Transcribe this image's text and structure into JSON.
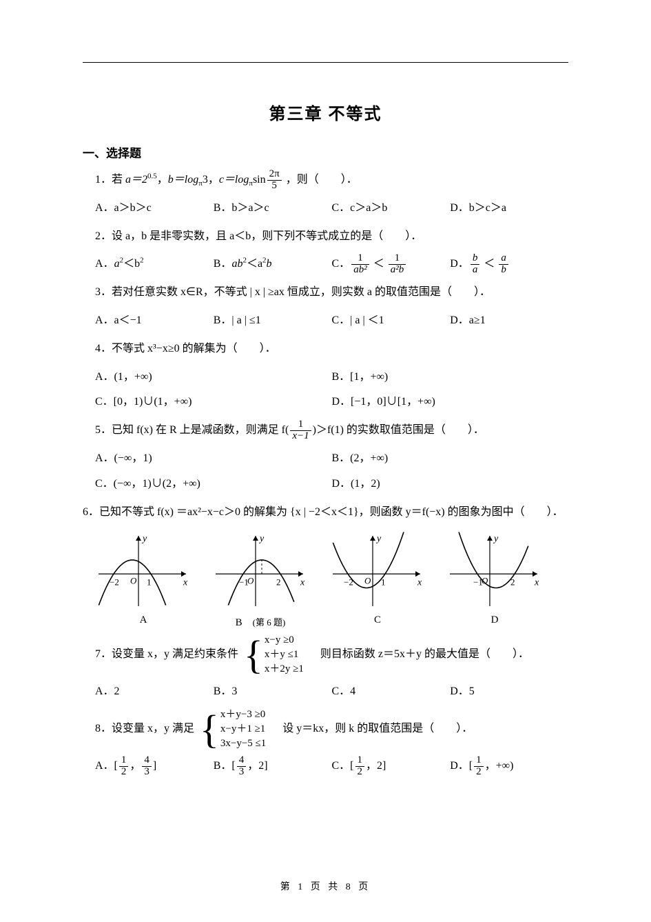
{
  "title": "第三章 不等式",
  "section1": "一、选择题",
  "q1": {
    "stem_pre": "1．若 ",
    "a_eq": "a＝2",
    "a_exp": "0.5",
    "sep1": "，",
    "b_eq": "b＝log",
    "b_sub": "π",
    "b_val": "3",
    "sep2": "，",
    "c_eq": "c＝log",
    "c_sub": "π",
    "c_val_pre": "sin",
    "frac_num": "2π",
    "frac_den": "5",
    "tail": " ，则（　　）．",
    "A": "A．a＞b＞c",
    "B": "B．b＞a＞c",
    "C": "C．c＞a＞b",
    "D": "D．b＞c＞a"
  },
  "q2": {
    "stem": "2．设 a，b 是非零实数，且 a＜b，则下列不等式成立的是（　　）．",
    "A_pre": "A．",
    "A_body": "a",
    "A_exp": "2",
    "A_mid": "＜b",
    "A_exp2": "2",
    "B_pre": "B．",
    "B_body": "ab",
    "B_exp": "2",
    "B_mid": "＜a",
    "B_exp2": "2",
    "B_tail": "b",
    "C_pre": "C．",
    "C_f1n": "1",
    "C_f1d": "ab²",
    "C_mid": " ＜ ",
    "C_f2n": "1",
    "C_f2d": "a²b",
    "D_pre": "D．",
    "D_f1n": "b",
    "D_f1d": "a",
    "D_mid": " ＜ ",
    "D_f2n": "a",
    "D_f2d": "b"
  },
  "q3": {
    "stem": "3．若对任意实数 x∈R，不等式 | x | ≥ax 恒成立，则实数 a 的取值范围是（　　）．",
    "A": "A．a＜−1",
    "B": "B．| a | ≤1",
    "C": "C．| a | ＜1",
    "D": "D．a≥1"
  },
  "q4": {
    "stem": "4．不等式 x³−x≥0 的解集为（　　）．",
    "A": "A．(1，+∞)",
    "B": "B．[1，+∞)",
    "C": "C．[0，1)∪(1，+∞)",
    "D": "D．[−1，0]∪[1，+∞)"
  },
  "q5": {
    "stem_pre": "5．已知 f(x) 在 R 上是减函数，则满足 f(",
    "frac_num": "1",
    "frac_den": "x−1",
    "stem_post": ")＞f(1) 的实数取值范围是（　　）．",
    "A": "A．(−∞，1)",
    "B": "B．(2，+∞)",
    "C": "C．(−∞，1)∪(2，+∞)",
    "D": "D．(1，2)"
  },
  "q6": {
    "stem": "6．已知不等式 f(x) ＝ax²−x−c＞0 的解集为 {x | −2＜x＜1}，则函数 y＝f(−x) 的图象为图中（　　）．",
    "labels": {
      "A": "A",
      "B": "B",
      "C": "C",
      "D": "D"
    },
    "caption": "(第 6 题)",
    "graphs": {
      "axis_color": "#000000",
      "curve_color": "#000000",
      "width": 140,
      "height": 115,
      "A": {
        "open": "down",
        "roots": [
          -2,
          1
        ],
        "xticks": {
          "-2": "−2",
          "1": "1"
        },
        "ylabel": "y",
        "xlabel": "x"
      },
      "B": {
        "open": "down",
        "roots": [
          -1,
          2
        ],
        "xticks": {
          "-1": "−1",
          "2": "2"
        },
        "ylabel": "y",
        "xlabel": "x"
      },
      "C": {
        "open": "up",
        "roots": [
          -2,
          1
        ],
        "xticks": {
          "-2": "−2",
          "1": "1"
        },
        "ylabel": "y",
        "xlabel": "x"
      },
      "D": {
        "open": "up",
        "roots": [
          -1,
          2
        ],
        "xticks": {
          "-1": "−1",
          "2": "2"
        },
        "ylabel": "y",
        "xlabel": "x"
      }
    }
  },
  "q7": {
    "stem_pre": "7．设变量 x，y 满足约束条件",
    "c1": "x−y ≥0",
    "c2": "x＋y ≤1",
    "c3": "x＋2y ≥1",
    "stem_post": "　则目标函数 z＝5x＋y 的最大值是（　　）．",
    "A": "A．2",
    "B": "B．3",
    "C": "C．4",
    "D": "D．5"
  },
  "q8": {
    "stem_pre": "8．设变量 x，y 满足",
    "c1": "x＋y−3 ≥0",
    "c2": "x−y＋1 ≥1",
    "c3": "3x−y−5 ≤1",
    "stem_post": "　设 y＝kx，则 k 的取值范围是（　　）．",
    "A_pre": "A．[",
    "A_f1n": "1",
    "A_f1d": "2",
    "A_mid": "，",
    "A_f2n": "4",
    "A_f2d": "3",
    "A_post": "]",
    "B_pre": "B．[",
    "B_f1n": "4",
    "B_f1d": "3",
    "B_mid": "，2]",
    "C_pre": "C．[",
    "C_f1n": "1",
    "C_f1d": "2",
    "C_mid": "，2]",
    "D_pre": "D．[",
    "D_f1n": "1",
    "D_f1d": "2",
    "D_mid": "，+∞)"
  },
  "footer": "第 1 页 共 8 页"
}
